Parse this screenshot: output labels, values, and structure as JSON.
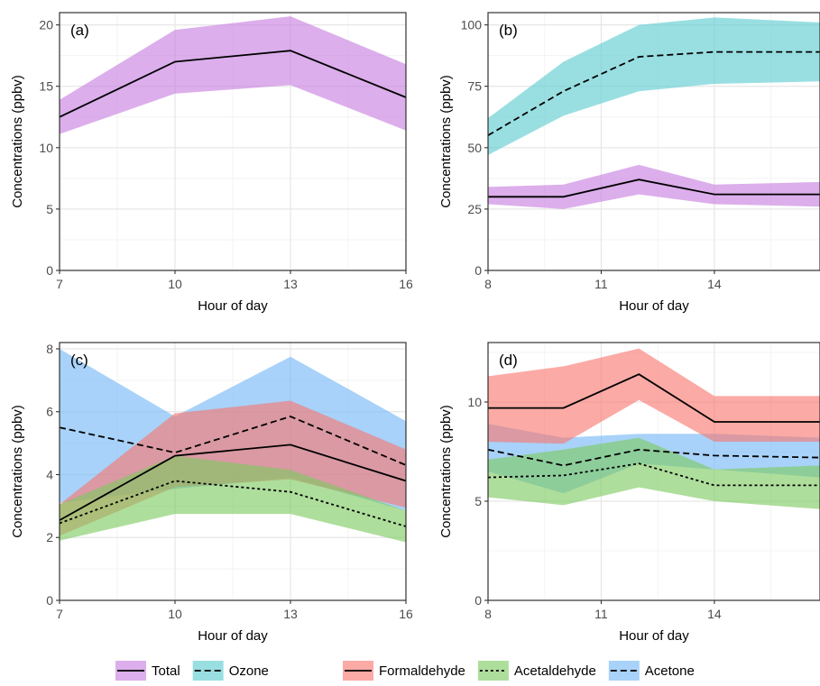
{
  "colors": {
    "total": "#C77CDE",
    "ozone": "#5BCCD1",
    "formaldehyde": "#F8766D",
    "acetaldehyde": "#7CC95F",
    "acetone": "#72B6F5",
    "grid_major": "#e6e6e6",
    "grid_minor": "#f3f3f3"
  },
  "legend": {
    "group1": [
      {
        "key": "total",
        "label": "Total",
        "dash": "solid"
      },
      {
        "key": "ozone",
        "label": "Ozone",
        "dash": "dashed"
      }
    ],
    "group2": [
      {
        "key": "formaldehyde",
        "label": "Formaldehyde",
        "dash": "solid"
      },
      {
        "key": "acetaldehyde",
        "label": "Acetaldehyde",
        "dash": "dotted"
      },
      {
        "key": "acetone",
        "label": "Acetone",
        "dash": "dashed"
      }
    ]
  },
  "chart_data": [
    {
      "type": "area",
      "panel_label": "(a)",
      "xlabel": "Hour of day",
      "ylabel": "Concentrations (ppbv)",
      "xlim": [
        7,
        16
      ],
      "ylim": [
        0,
        21
      ],
      "xticks": [
        7,
        10,
        13,
        16
      ],
      "yticks": [
        0,
        5,
        10,
        15,
        20
      ],
      "grid": true,
      "series": [
        {
          "key": "total",
          "dash": "solid",
          "x": [
            7,
            10,
            13,
            16
          ],
          "y": [
            12.5,
            17.0,
            17.9,
            14.1
          ],
          "lower": [
            11.1,
            14.4,
            15.1,
            11.4
          ],
          "upper": [
            13.9,
            19.6,
            20.7,
            16.8
          ]
        }
      ]
    },
    {
      "type": "area",
      "panel_label": "(b)",
      "xlabel": "Hour of day",
      "ylabel": "Concentrations (ppbv)",
      "xlim": [
        8,
        16.8
      ],
      "ylim": [
        0,
        105
      ],
      "xticks": [
        8,
        11,
        14
      ],
      "yticks": [
        0,
        25,
        50,
        75,
        100
      ],
      "grid": true,
      "series": [
        {
          "key": "ozone",
          "dash": "dashed",
          "x": [
            8,
            10,
            12,
            14,
            16.8
          ],
          "y": [
            55,
            73,
            87,
            89,
            89
          ],
          "lower": [
            47,
            63,
            73,
            76,
            77
          ],
          "upper": [
            62,
            85,
            100,
            103,
            101
          ]
        },
        {
          "key": "total",
          "dash": "solid",
          "x": [
            8,
            10,
            12,
            14,
            16.8
          ],
          "y": [
            30,
            30,
            37,
            31,
            31
          ],
          "lower": [
            27,
            25,
            31,
            27,
            26
          ],
          "upper": [
            34,
            35,
            43,
            35,
            36
          ]
        }
      ]
    },
    {
      "type": "area",
      "panel_label": "(c)",
      "xlabel": "Hour of day",
      "ylabel": "Concentrations (ppbv)",
      "xlim": [
        7,
        16
      ],
      "ylim": [
        0,
        8.2
      ],
      "xticks": [
        7,
        10,
        13,
        16
      ],
      "yticks": [
        0,
        2,
        4,
        6,
        8
      ],
      "grid": true,
      "series": [
        {
          "key": "acetone",
          "dash": "dashed",
          "x": [
            7,
            10,
            13,
            16
          ],
          "y": [
            5.5,
            4.7,
            5.85,
            4.3
          ],
          "lower": [
            3.1,
            3.55,
            3.9,
            2.85
          ],
          "upper": [
            8.0,
            5.85,
            7.75,
            5.7
          ]
        },
        {
          "key": "formaldehyde",
          "dash": "solid",
          "x": [
            7,
            10,
            13,
            16
          ],
          "y": [
            2.55,
            4.6,
            4.95,
            3.8
          ],
          "lower": [
            2.05,
            3.6,
            3.85,
            2.95
          ],
          "upper": [
            3.05,
            5.95,
            6.35,
            4.8
          ]
        },
        {
          "key": "acetaldehyde",
          "dash": "dotted",
          "x": [
            7,
            10,
            13,
            16
          ],
          "y": [
            2.45,
            3.8,
            3.45,
            2.35
          ],
          "lower": [
            1.9,
            2.75,
            2.75,
            1.85
          ],
          "upper": [
            3.05,
            4.6,
            4.15,
            2.85
          ]
        }
      ]
    },
    {
      "type": "area",
      "panel_label": "(d)",
      "xlabel": "Hour of day",
      "ylabel": "Concentrations (ppbv)",
      "xlim": [
        8,
        16.8
      ],
      "ylim": [
        0,
        13
      ],
      "xticks": [
        8,
        11,
        14
      ],
      "yticks": [
        0,
        5,
        10
      ],
      "grid": true,
      "series": [
        {
          "key": "acetone",
          "dash": "dashed",
          "x": [
            8,
            10,
            12,
            14,
            16.8
          ],
          "y": [
            7.6,
            6.8,
            7.6,
            7.3,
            7.2
          ],
          "lower": [
            6.5,
            5.4,
            6.9,
            6.6,
            6.2
          ],
          "upper": [
            8.9,
            8.2,
            8.4,
            8.4,
            8.2
          ]
        },
        {
          "key": "formaldehyde",
          "dash": "solid",
          "x": [
            8,
            10,
            12,
            14,
            16.8
          ],
          "y": [
            9.7,
            9.7,
            11.4,
            9.0,
            9.0
          ],
          "lower": [
            8.0,
            7.9,
            10.1,
            8.0,
            8.0
          ],
          "upper": [
            11.3,
            11.8,
            12.7,
            10.3,
            10.3
          ]
        },
        {
          "key": "acetaldehyde",
          "dash": "dotted",
          "x": [
            8,
            10,
            12,
            14,
            16.8
          ],
          "y": [
            6.2,
            6.3,
            6.9,
            5.8,
            5.8
          ],
          "lower": [
            5.2,
            4.8,
            5.7,
            5.0,
            4.6
          ],
          "upper": [
            7.1,
            7.6,
            8.2,
            6.6,
            6.8
          ]
        }
      ]
    }
  ]
}
